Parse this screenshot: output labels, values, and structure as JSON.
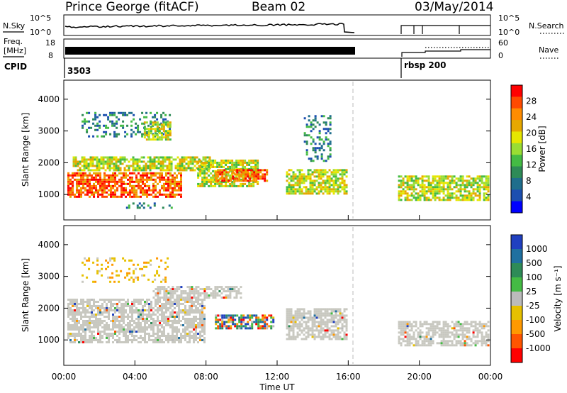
{
  "header": {
    "station": "Prince George (fitACF)",
    "beam": "Beam 02",
    "date": "03/May/2014"
  },
  "panels": {
    "nsky": {
      "label": "N.Sky",
      "ticks": [
        "10^5",
        "10^0"
      ],
      "right_label": "N.Search",
      "right_ticks": [
        "10^5",
        "10^0"
      ]
    },
    "freq": {
      "label_line1": "Freq.",
      "label_line2": "[MHz]",
      "ticks": [
        "18",
        "8"
      ],
      "right_label": "Nave",
      "right_ticks": [
        "60",
        "0"
      ]
    },
    "cpid": {
      "label": "CPID",
      "segments": [
        "3503",
        "rbsp 200"
      ]
    }
  },
  "colorbars": {
    "power": {
      "label": "Power [dB]",
      "ticks": [
        "28",
        "24",
        "20",
        "16",
        "12",
        "8",
        "4"
      ],
      "colors": [
        "#ff0000",
        "#ff4a00",
        "#ff8c00",
        "#e6a800",
        "#e6e600",
        "#99dd33",
        "#44bb44",
        "#2e8b57",
        "#1f6e8c",
        "#1c4fb0",
        "#0000ff"
      ]
    },
    "velocity": {
      "label": "Velocity [m s⁻¹]",
      "ticks": [
        "1000",
        "500",
        "100",
        "25",
        "-25",
        "-100",
        "-500",
        "-1000"
      ],
      "colors": [
        "#2040c0",
        "#2070a0",
        "#2e8b57",
        "#44bb44",
        "#bbbbbb",
        "#e6c000",
        "#ff9900",
        "#ff5500",
        "#ff0000"
      ]
    }
  },
  "chart_data": [
    {
      "type": "heatmap",
      "title": "Power",
      "xlabel": "Time UT",
      "ylabel": "Slant Range [km]",
      "x_ticks": [
        "00:00",
        "04:00",
        "08:00",
        "12:00",
        "16:00",
        "20:00",
        "00:00"
      ],
      "y_ticks": [
        1000,
        2000,
        3000,
        4000
      ],
      "xlim_hours": [
        0,
        24
      ],
      "ylim": [
        200,
        4600
      ],
      "regions": [
        {
          "t0": 0.2,
          "t1": 6.6,
          "r0": 900,
          "r1": 1700,
          "level": "high"
        },
        {
          "t0": 0.5,
          "t1": 8.3,
          "r0": 1700,
          "r1": 2200,
          "level": "mid"
        },
        {
          "t0": 7.5,
          "t1": 11.0,
          "r0": 1200,
          "r1": 2100,
          "level": "mid"
        },
        {
          "t0": 8.5,
          "t1": 11.5,
          "r0": 1400,
          "r1": 1800,
          "level": "high"
        },
        {
          "t0": 1.0,
          "t1": 6.0,
          "r0": 2800,
          "r1": 3600,
          "level": "low"
        },
        {
          "t0": 4.5,
          "t1": 6.0,
          "r0": 2700,
          "r1": 3300,
          "level": "mid"
        },
        {
          "t0": 3.5,
          "t1": 6.2,
          "r0": 550,
          "r1": 750,
          "level": "low"
        },
        {
          "t0": 12.5,
          "t1": 16.0,
          "r0": 1000,
          "r1": 1800,
          "level": "mid"
        },
        {
          "t0": 13.5,
          "t1": 15.0,
          "r0": 2000,
          "r1": 3500,
          "level": "low"
        },
        {
          "t0": 18.8,
          "t1": 24.0,
          "r0": 800,
          "r1": 1600,
          "level": "mid"
        }
      ]
    },
    {
      "type": "heatmap",
      "title": "Velocity",
      "xlabel": "Time UT",
      "ylabel": "Slant Range [km]",
      "x_ticks": [
        "00:00",
        "04:00",
        "08:00",
        "12:00",
        "16:00",
        "20:00",
        "00:00"
      ],
      "y_ticks": [
        1000,
        2000,
        3000,
        4000
      ],
      "xlim_hours": [
        0,
        24
      ],
      "ylim": [
        200,
        4600
      ],
      "regions": [
        {
          "t0": 0.2,
          "t1": 8.0,
          "r0": 900,
          "r1": 2300,
          "level": "ground"
        },
        {
          "t0": 5.0,
          "t1": 10.0,
          "r0": 2300,
          "r1": 2700,
          "level": "ground"
        },
        {
          "t0": 8.5,
          "t1": 11.8,
          "r0": 1300,
          "r1": 1800,
          "level": "mixed"
        },
        {
          "t0": 12.5,
          "t1": 16.0,
          "r0": 1000,
          "r1": 2000,
          "level": "ground"
        },
        {
          "t0": 18.8,
          "t1": 24.0,
          "r0": 800,
          "r1": 1600,
          "level": "ground"
        },
        {
          "t0": 1.0,
          "t1": 6.0,
          "r0": 2800,
          "r1": 3600,
          "level": "sparse"
        }
      ]
    }
  ]
}
